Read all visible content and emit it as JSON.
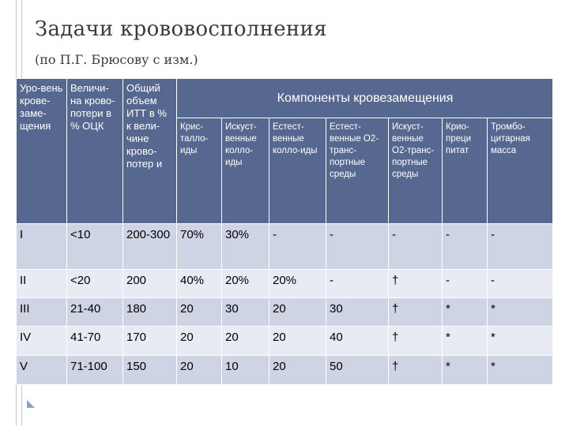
{
  "slide": {
    "title": "Задачи крововосполнения",
    "subtitle": "(по П.Г. Брюсову с изм.)"
  },
  "table": {
    "header": {
      "level": "Уро-вень крове-заме-щения",
      "volume": "Величи-на крово-потери в % ОЦК",
      "total": "Общий объем ИТТ в % к вели-чине крово-потер и",
      "group": "Компоненты кровезамещения",
      "components": [
        "Крис-талло-иды",
        "Искуст-венные колло-иды",
        "Естест-венные колло-иды",
        "Естест-венные О2-транс-портные среды",
        "Искуст-венные О2-транс-портные среды",
        "Крио-преци питат",
        "Тромбо-цитарная масса"
      ]
    },
    "rows": [
      {
        "level": "I",
        "volume": "<10",
        "total": "200-300",
        "values": [
          "70%",
          "30%",
          "-",
          "-",
          "-",
          "-",
          "-"
        ]
      },
      {
        "level": "II",
        "volume": "<20",
        "total": "200",
        "values": [
          "40%",
          "20%",
          "20%",
          "-",
          "†",
          "-",
          "-"
        ]
      },
      {
        "level": "III",
        "volume": "21-40",
        "total": "180",
        "values": [
          "20",
          "30",
          "20",
          "30",
          "†",
          "*",
          "*"
        ]
      },
      {
        "level": "IV",
        "volume": "41-70",
        "total": "170",
        "values": [
          "20",
          "20",
          "20",
          "40",
          "†",
          "*",
          "*"
        ]
      },
      {
        "level": "V",
        "volume": "71-100",
        "total": "150",
        "values": [
          "20",
          "10",
          "20",
          "50",
          "†",
          "*",
          "*"
        ]
      }
    ]
  },
  "colors": {
    "header_bg": "#56688f",
    "row_dark": "#cfd4e4",
    "row_light": "#e8ebf3"
  },
  "icons": {
    "slide_marker": "corner-triangle-icon"
  }
}
